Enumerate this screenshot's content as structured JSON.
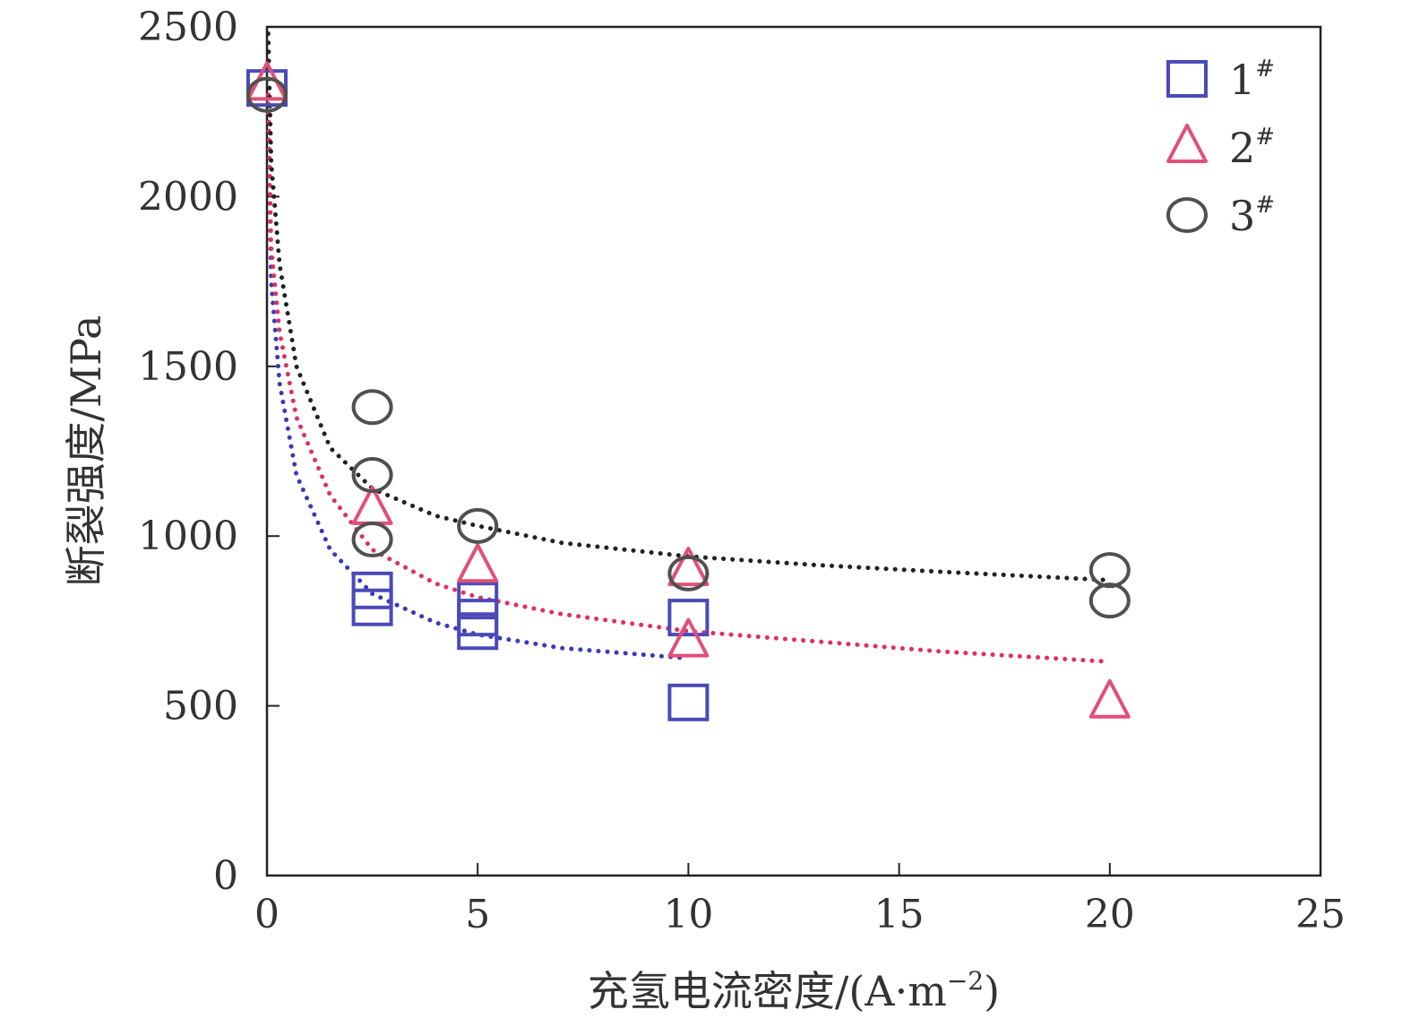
{
  "chart_data": {
    "type": "scatter",
    "xlabel": "充氢电流密度/(A·m",
    "xlabel_exponent": "−2",
    "xlabel_close": ")",
    "ylabel": "断裂强度/MPa",
    "xlim": [
      0,
      25
    ],
    "ylim": [
      0,
      2500
    ],
    "x_ticks": [
      "0",
      "5",
      "10",
      "15",
      "20",
      "25"
    ],
    "y_ticks": [
      "0",
      "500",
      "1000",
      "1500",
      "2000",
      "2500"
    ],
    "legend_position": "top-right",
    "grid": false,
    "series": [
      {
        "name": "1",
        "name_sup": "#",
        "marker": "square",
        "color": "#4a4ab8",
        "points": [
          [
            0,
            2320
          ],
          [
            2.5,
            840
          ],
          [
            2.5,
            790
          ],
          [
            5,
            810
          ],
          [
            5,
            760
          ],
          [
            5,
            720
          ],
          [
            10,
            760
          ],
          [
            10,
            510
          ]
        ],
        "fit": [
          [
            0.03,
            2300
          ],
          [
            0.1,
            1750
          ],
          [
            0.3,
            1450
          ],
          [
            0.7,
            1180
          ],
          [
            1.5,
            960
          ],
          [
            2.5,
            830
          ],
          [
            4,
            745
          ],
          [
            5,
            710
          ],
          [
            7,
            670
          ],
          [
            10,
            640
          ]
        ],
        "fit_color": "#3a3ab8"
      },
      {
        "name": "2",
        "name_sup": "#",
        "marker": "triangle",
        "color": "#e05078",
        "points": [
          [
            0,
            2330
          ],
          [
            2.5,
            1080
          ],
          [
            5,
            910
          ],
          [
            10,
            900
          ],
          [
            10,
            690
          ],
          [
            20,
            510
          ]
        ],
        "fit": [
          [
            0.03,
            2300
          ],
          [
            0.1,
            1850
          ],
          [
            0.3,
            1600
          ],
          [
            0.7,
            1350
          ],
          [
            1.5,
            1120
          ],
          [
            2.5,
            960
          ],
          [
            4,
            860
          ],
          [
            5,
            820
          ],
          [
            7,
            770
          ],
          [
            10,
            720
          ],
          [
            13,
            690
          ],
          [
            16,
            660
          ],
          [
            20,
            630
          ]
        ],
        "fit_color": "#e03060"
      },
      {
        "name": "3",
        "name_sup": "#",
        "marker": "circle",
        "color": "#505050",
        "points": [
          [
            0,
            2300
          ],
          [
            2.5,
            1380
          ],
          [
            2.5,
            1180
          ],
          [
            2.5,
            990
          ],
          [
            5,
            1030
          ],
          [
            10,
            890
          ],
          [
            20,
            900
          ],
          [
            20,
            810
          ]
        ],
        "fit": [
          [
            0.03,
            2480
          ],
          [
            0.1,
            2100
          ],
          [
            0.3,
            1800
          ],
          [
            0.7,
            1500
          ],
          [
            1.5,
            1260
          ],
          [
            2.5,
            1140
          ],
          [
            4,
            1060
          ],
          [
            5,
            1030
          ],
          [
            7,
            980
          ],
          [
            10,
            940
          ],
          [
            13,
            915
          ],
          [
            16,
            895
          ],
          [
            20,
            870
          ]
        ],
        "fit_color": "#222222"
      }
    ]
  }
}
